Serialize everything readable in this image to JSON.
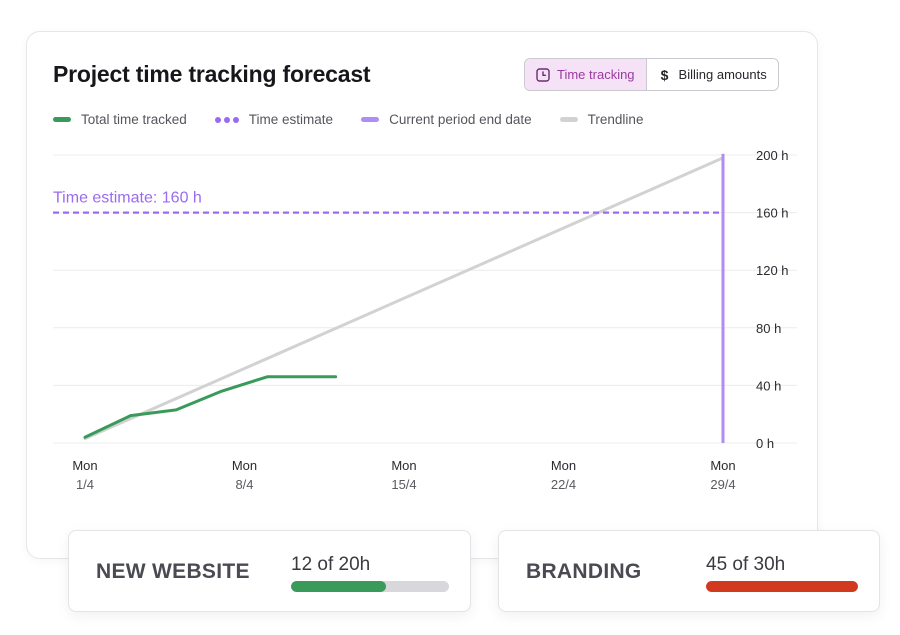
{
  "title": "Project time tracking forecast",
  "toggle": {
    "time_tracking": "Time tracking",
    "billing_amounts": "Billing amounts"
  },
  "legend": [
    {
      "label": "Total time tracked",
      "color": "#3a9a5a",
      "style": "solid"
    },
    {
      "label": "Time estimate",
      "color": "#9a6bf0",
      "style": "dots"
    },
    {
      "label": "Current period end date",
      "color": "#b18cf2",
      "style": "solid"
    },
    {
      "label": "Trendline",
      "color": "#d2d2d2",
      "style": "solid"
    }
  ],
  "colors": {
    "tracked": "#3a9a5a",
    "estimate": "#9a6bf0",
    "period_end": "#b18cf2",
    "trend": "#d2d2d2",
    "grid": "#ececef",
    "over_budget": "#d13a1e"
  },
  "chart_data": {
    "type": "line",
    "ylim": [
      0,
      200
    ],
    "y_ticks": [
      "0 h",
      "40 h",
      "80 h",
      "120 h",
      "160 h",
      "200 h"
    ],
    "y_tick_values": [
      0,
      40,
      80,
      120,
      160,
      200
    ],
    "x_ticks": [
      {
        "day": "Mon",
        "date": "1/4"
      },
      {
        "day": "Mon",
        "date": "8/4"
      },
      {
        "day": "Mon",
        "date": "15/4"
      },
      {
        "day": "Mon",
        "date": "22/4"
      },
      {
        "day": "Mon",
        "date": "29/4"
      }
    ],
    "series": [
      {
        "name": "Total time tracked",
        "x": [
          "1/4",
          "3/4",
          "5/4",
          "7/4",
          "9/4",
          "12/4"
        ],
        "values": [
          4,
          19,
          23,
          36,
          46,
          46
        ]
      },
      {
        "name": "Trendline",
        "x": [
          "1/4",
          "29/4"
        ],
        "values": [
          3,
          198
        ]
      }
    ],
    "estimate": {
      "name": "Time estimate",
      "value": 160,
      "label": "Time estimate: 160 h"
    },
    "period_end": {
      "name": "Current period end date",
      "x": "29/4"
    },
    "grid": true,
    "legend_position": "top-left"
  },
  "projects": [
    {
      "name": "NEW WEBSITE",
      "value": "12 of 20h",
      "progress": 0.6,
      "color": "#3a9a5a"
    },
    {
      "name": "BRANDING",
      "value": "45 of 30h",
      "progress": 1.0,
      "color": "#d13a1e"
    }
  ]
}
